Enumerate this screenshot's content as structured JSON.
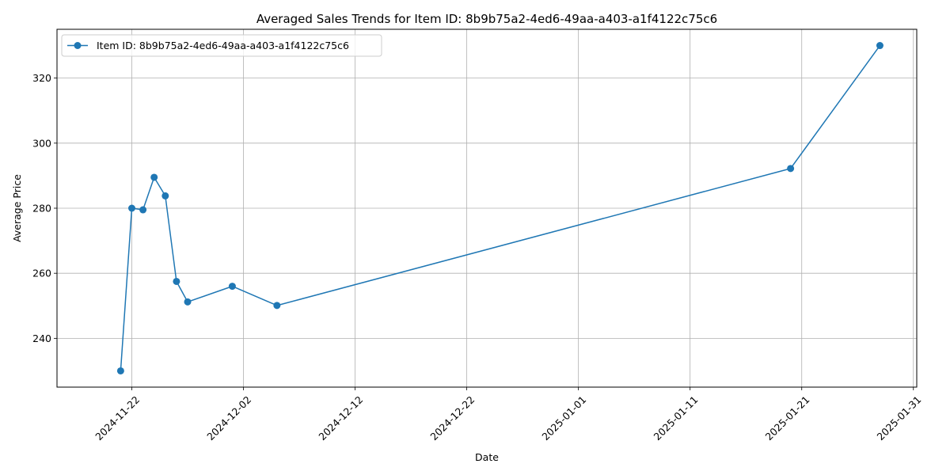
{
  "chart_data": {
    "type": "line",
    "title": "Averaged Sales Trends for Item ID: 8b9b75a2-4ed6-49aa-a403-a1f4122c75c6",
    "xlabel": "Date",
    "ylabel": "Average Price",
    "x_type": "date",
    "xlim": [
      "2024-11-16",
      "2025-01-31"
    ],
    "ylim": [
      225,
      335
    ],
    "x_ticks": [
      "2024-11-22",
      "2024-12-02",
      "2024-12-12",
      "2024-12-22",
      "2025-01-01",
      "2025-01-11",
      "2025-01-21",
      "2025-01-31"
    ],
    "y_ticks": [
      240,
      260,
      280,
      300,
      320
    ],
    "grid": true,
    "legend_position": "upper-left",
    "series": [
      {
        "name": "Item ID: 8b9b75a2-4ed6-49aa-a403-a1f4122c75c6",
        "color": "#1f77b4",
        "marker": "circle",
        "x": [
          "2024-11-21",
          "2024-11-22",
          "2024-11-23",
          "2024-11-24",
          "2024-11-25",
          "2024-11-26",
          "2024-11-27",
          "2024-12-01",
          "2024-12-05",
          "2025-01-20",
          "2025-01-28"
        ],
        "y": [
          230.0,
          280.0,
          279.5,
          289.5,
          283.8,
          257.5,
          251.2,
          256.0,
          250.1,
          292.2,
          330.0
        ]
      }
    ]
  }
}
